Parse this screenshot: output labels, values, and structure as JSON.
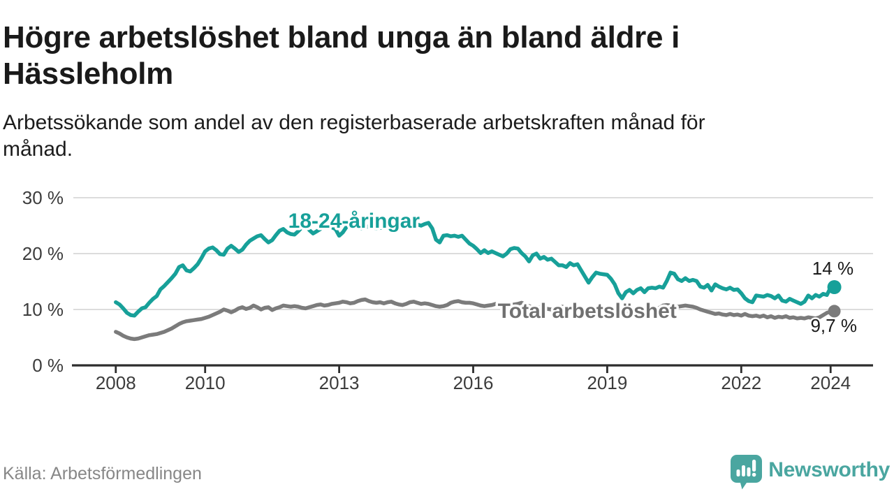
{
  "header": {
    "title_lines": [
      "Högre arbetslöshet bland unga än bland äldre i",
      "Hässleholm"
    ],
    "subtitle_lines": [
      "Arbetssökande som andel av den registerbaserade arbetskraften månad för",
      "månad."
    ]
  },
  "footer": {
    "source": "Källa: Arbetsförmedlingen",
    "logo_text": "Newsworthy"
  },
  "colors": {
    "young_line": "#17a099",
    "total_line": "#7b7b7b",
    "total_label": "#707070",
    "grid": "#dcdcdc",
    "axis": "#2d2d2d",
    "tick_label": "#3c3c3c",
    "value_label": "#1a1a1a",
    "logo_teal": "#4aa6a0",
    "background": "#ffffff"
  },
  "chart_data": {
    "type": "line",
    "title": "Högre arbetslöshet bland unga än bland äldre i Hässleholm",
    "subtitle": "Arbetssökande som andel av den registerbaserade arbetskraften månad för månad.",
    "unit": "%",
    "grid": true,
    "legend": "inline-labels",
    "xlim_years": [
      2007.05,
      2024.95
    ],
    "ylim": [
      0,
      30
    ],
    "y_ticks": [
      {
        "value": 0,
        "label": "0 %",
        "gridline": false
      },
      {
        "value": 10,
        "label": "10 %",
        "gridline": true
      },
      {
        "value": 20,
        "label": "20 %",
        "gridline": true
      },
      {
        "value": 30,
        "label": "30 %",
        "gridline": true
      }
    ],
    "x_ticks": [
      {
        "year": 2008,
        "label": "2008"
      },
      {
        "year": 2010,
        "label": "2010"
      },
      {
        "year": 2013,
        "label": "2013"
      },
      {
        "year": 2016,
        "label": "2016"
      },
      {
        "year": 2019,
        "label": "2019"
      },
      {
        "year": 2022,
        "label": "2022"
      },
      {
        "year": 2024,
        "label": "2024"
      }
    ],
    "series": [
      {
        "name": "18-24-åringar",
        "color": "#17a099",
        "label_color": "#17a099",
        "start_year": 2008,
        "points_per_year": 12,
        "end_label": "14 %",
        "end_value": 14.0,
        "label_pos": {
          "x": 2011.86,
          "y": 25.9
        },
        "end_label_pos": {
          "x": 2024.05,
          "y": 17.4
        },
        "end_dot_radius": 10,
        "values": [
          11.3,
          10.9,
          10.2,
          9.4,
          9.0,
          8.9,
          9.6,
          10.2,
          10.4,
          11.2,
          11.9,
          12.4,
          13.6,
          14.2,
          14.9,
          15.6,
          16.4,
          17.6,
          17.9,
          17.0,
          16.8,
          17.4,
          18.1,
          19.2,
          20.4,
          20.9,
          21.1,
          20.6,
          19.9,
          19.8,
          20.9,
          21.4,
          20.9,
          20.3,
          20.7,
          21.6,
          22.3,
          22.7,
          23.1,
          23.3,
          22.6,
          22.0,
          22.4,
          23.3,
          24.1,
          24.4,
          23.8,
          23.5,
          23.4,
          24.0,
          24.7,
          24.9,
          24.2,
          23.6,
          24.0,
          24.4,
          25.0,
          25.2,
          24.7,
          24.4,
          23.2,
          23.8,
          24.8,
          25.4,
          25.2,
          24.7,
          24.5,
          24.7,
          24.9,
          24.7,
          24.5,
          24.6,
          24.6,
          24.9,
          25.2,
          25.0,
          24.7,
          24.9,
          25.1,
          24.8,
          25.0,
          25.2,
          25.0,
          25.3,
          25.5,
          24.5,
          22.5,
          22.0,
          23.2,
          23.3,
          23.1,
          23.2,
          23.0,
          23.2,
          22.5,
          21.8,
          21.4,
          20.8,
          20.1,
          20.6,
          20.1,
          20.4,
          20.1,
          19.8,
          19.5,
          20.0,
          20.8,
          21.0,
          20.9,
          20.1,
          19.5,
          18.6,
          19.7,
          20.0,
          19.1,
          19.4,
          18.9,
          19.1,
          18.5,
          17.9,
          17.9,
          17.6,
          18.3,
          17.9,
          18.1,
          17.0,
          15.9,
          14.8,
          15.8,
          16.6,
          16.4,
          16.3,
          16.2,
          15.5,
          14.5,
          12.9,
          12.0,
          13.1,
          13.5,
          12.9,
          13.5,
          13.8,
          13.1,
          13.8,
          13.9,
          13.8,
          14.1,
          13.9,
          15.1,
          16.6,
          16.4,
          15.4,
          15.1,
          15.6,
          15.1,
          15.3,
          15.1,
          14.1,
          13.9,
          14.4,
          13.4,
          14.5,
          14.1,
          13.8,
          13.6,
          13.9,
          13.5,
          13.6,
          12.9,
          12.0,
          11.5,
          11.3,
          12.5,
          12.4,
          12.3,
          12.6,
          12.4,
          12.0,
          12.5,
          11.6,
          11.4,
          11.9,
          11.6,
          11.3,
          11.0,
          11.4,
          12.5,
          12.0,
          12.6,
          12.3,
          12.8,
          12.6,
          13.9,
          14.0
        ]
      },
      {
        "name": "Total arbetslöshet",
        "color": "#7b7b7b",
        "label_color": "#707070",
        "start_year": 2008,
        "points_per_year": 12,
        "end_label": "9,7 %",
        "end_value": 9.7,
        "label_pos": {
          "x": 2016.55,
          "y": 9.75
        },
        "end_label_pos": {
          "x": 2024.07,
          "y": 7.1
        },
        "end_dot_radius": 9,
        "values": [
          6.0,
          5.7,
          5.3,
          5.0,
          4.8,
          4.7,
          4.8,
          5.0,
          5.2,
          5.4,
          5.5,
          5.6,
          5.8,
          6.0,
          6.3,
          6.6,
          7.0,
          7.4,
          7.7,
          7.9,
          8.0,
          8.1,
          8.2,
          8.3,
          8.5,
          8.7,
          9.0,
          9.3,
          9.6,
          10.0,
          9.8,
          9.5,
          9.8,
          10.2,
          10.4,
          10.1,
          10.3,
          10.7,
          10.4,
          10.0,
          10.3,
          10.4,
          9.9,
          10.2,
          10.4,
          10.7,
          10.6,
          10.5,
          10.6,
          10.5,
          10.3,
          10.2,
          10.4,
          10.6,
          10.8,
          10.9,
          10.7,
          10.8,
          11.0,
          11.1,
          11.2,
          11.4,
          11.3,
          11.1,
          11.2,
          11.5,
          11.7,
          11.8,
          11.5,
          11.3,
          11.2,
          11.3,
          11.1,
          11.3,
          11.4,
          11.1,
          10.9,
          10.8,
          11.0,
          11.3,
          11.4,
          11.2,
          11.0,
          11.1,
          11.0,
          10.8,
          10.6,
          10.5,
          10.6,
          10.8,
          11.2,
          11.4,
          11.5,
          11.3,
          11.2,
          11.2,
          11.1,
          10.9,
          10.7,
          10.6,
          10.7,
          10.8,
          11.0,
          10.9,
          10.7,
          10.6,
          10.7,
          10.9,
          11.0,
          11.2,
          10.9,
          10.6,
          10.4,
          10.3,
          10.4,
          10.3,
          10.1,
          10.0,
          10.2,
          10.4,
          10.5,
          10.3,
          10.1,
          9.9,
          9.8,
          9.6,
          9.5,
          9.6,
          9.8,
          9.9,
          9.8,
          9.9,
          10.0,
          9.8,
          9.6,
          9.5,
          9.4,
          9.4,
          9.3,
          9.4,
          9.3,
          9.4,
          9.6,
          9.8,
          9.9,
          10.0,
          10.3,
          10.7,
          10.8,
          10.7,
          10.6,
          10.5,
          10.6,
          10.7,
          10.6,
          10.5,
          10.3,
          10.0,
          9.8,
          9.6,
          9.4,
          9.2,
          9.3,
          9.1,
          9.0,
          9.2,
          9.0,
          9.1,
          8.9,
          9.2,
          8.9,
          8.8,
          8.9,
          8.7,
          8.9,
          8.6,
          8.8,
          8.5,
          8.7,
          8.6,
          8.8,
          8.5,
          8.6,
          8.4,
          8.5,
          8.4,
          8.6,
          8.5,
          8.4,
          8.6,
          9.0,
          9.4,
          9.6,
          9.7
        ]
      }
    ]
  }
}
